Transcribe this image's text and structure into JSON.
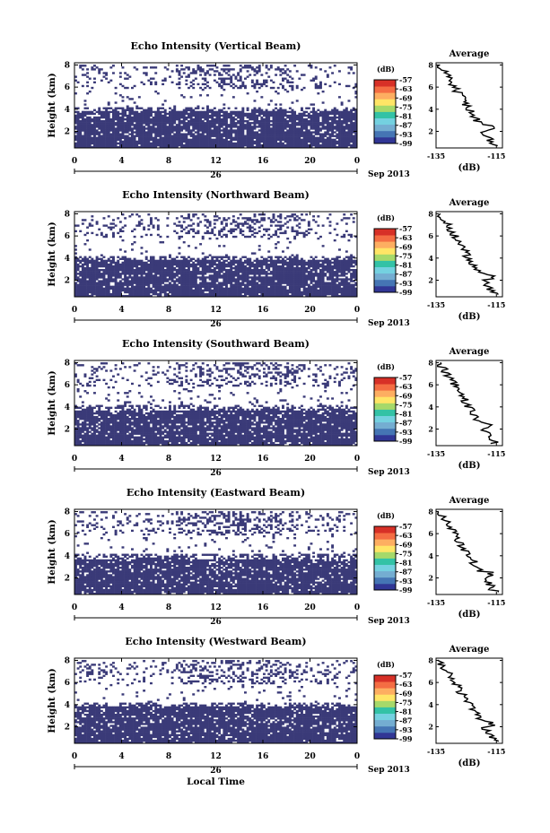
{
  "chart_data": [
    {
      "type": "heatmap",
      "title": "Echo Intensity (Vertical Beam)",
      "ylabel": "Height (km)",
      "x_ticks": [
        "0",
        "4",
        "8",
        "12",
        "16",
        "20",
        "0"
      ],
      "x_range": [
        0,
        24
      ],
      "y_ticks": [
        "2",
        "4",
        "6",
        "8"
      ],
      "y_range": [
        0.5,
        8.2
      ],
      "date_label": "26",
      "month_label": "Sep 2013",
      "colorbar": {
        "unit": "(dB)",
        "ticks": [
          "-57",
          "-63",
          "-69",
          "-75",
          "-81",
          "-87",
          "-93",
          "-99"
        ],
        "range": [
          -99,
          -57
        ]
      },
      "profile": {
        "title": "Average",
        "xlabel": "(dB)",
        "x_ticks": [
          "-135",
          "-115"
        ],
        "y_ticks": [
          "2",
          "4",
          "6",
          "8"
        ],
        "x_range": [
          -135,
          -113
        ],
        "y_range": [
          0.5,
          8.2
        ]
      }
    },
    {
      "type": "heatmap",
      "title": "Echo Intensity (Northward Beam)",
      "ylabel": "Height (km)",
      "x_ticks": [
        "0",
        "4",
        "8",
        "12",
        "16",
        "20",
        "0"
      ],
      "x_range": [
        0,
        24
      ],
      "y_ticks": [
        "2",
        "4",
        "6",
        "8"
      ],
      "y_range": [
        0.5,
        8.2
      ],
      "date_label": "26",
      "month_label": "Sep 2013",
      "colorbar": {
        "unit": "(dB)",
        "ticks": [
          "-57",
          "-63",
          "-69",
          "-75",
          "-81",
          "-87",
          "-93",
          "-99"
        ],
        "range": [
          -99,
          -57
        ]
      },
      "profile": {
        "title": "Average",
        "xlabel": "(dB)",
        "x_ticks": [
          "-135",
          "-115"
        ],
        "y_ticks": [
          "2",
          "4",
          "6",
          "8"
        ],
        "x_range": [
          -135,
          -113
        ],
        "y_range": [
          0.5,
          8.2
        ]
      }
    },
    {
      "type": "heatmap",
      "title": "Echo Intensity (Southward Beam)",
      "ylabel": "Height (km)",
      "x_ticks": [
        "0",
        "4",
        "8",
        "12",
        "16",
        "20",
        "0"
      ],
      "x_range": [
        0,
        24
      ],
      "y_ticks": [
        "2",
        "4",
        "6",
        "8"
      ],
      "y_range": [
        0.5,
        8.2
      ],
      "date_label": "26",
      "month_label": "Sep 2013",
      "colorbar": {
        "unit": "(dB)",
        "ticks": [
          "-57",
          "-63",
          "-69",
          "-75",
          "-81",
          "-87",
          "-93",
          "-99"
        ],
        "range": [
          -99,
          -57
        ]
      },
      "profile": {
        "title": "Average",
        "xlabel": "(dB)",
        "x_ticks": [
          "-135",
          "-115"
        ],
        "y_ticks": [
          "2",
          "4",
          "6",
          "8"
        ],
        "x_range": [
          -135,
          -113
        ],
        "y_range": [
          0.5,
          8.2
        ]
      }
    },
    {
      "type": "heatmap",
      "title": "Echo Intensity (Eastward Beam)",
      "ylabel": "Height (km)",
      "x_ticks": [
        "0",
        "4",
        "8",
        "12",
        "16",
        "20",
        "0"
      ],
      "x_range": [
        0,
        24
      ],
      "y_ticks": [
        "2",
        "4",
        "6",
        "8"
      ],
      "y_range": [
        0.5,
        8.2
      ],
      "date_label": "26",
      "month_label": "Sep 2013",
      "colorbar": {
        "unit": "(dB)",
        "ticks": [
          "-57",
          "-63",
          "-69",
          "-75",
          "-81",
          "-87",
          "-93",
          "-99"
        ],
        "range": [
          -99,
          -57
        ]
      },
      "profile": {
        "title": "Average",
        "xlabel": "(dB)",
        "x_ticks": [
          "-135",
          "-115"
        ],
        "y_ticks": [
          "2",
          "4",
          "6",
          "8"
        ],
        "x_range": [
          -135,
          -113
        ],
        "y_range": [
          0.5,
          8.2
        ]
      }
    },
    {
      "type": "heatmap",
      "title": "Echo Intensity (Westward Beam)",
      "ylabel": "Height (km)",
      "x_ticks": [
        "0",
        "4",
        "8",
        "12",
        "16",
        "20",
        "0"
      ],
      "x_range": [
        0,
        24
      ],
      "y_ticks": [
        "2",
        "4",
        "6",
        "8"
      ],
      "y_range": [
        0.5,
        8.2
      ],
      "date_label": "26",
      "month_label": "Sep 2013",
      "xlabel": "Local Time",
      "colorbar": {
        "unit": "(dB)",
        "ticks": [
          "-57",
          "-63",
          "-69",
          "-75",
          "-81",
          "-87",
          "-93",
          "-99"
        ],
        "range": [
          -99,
          -57
        ]
      },
      "profile": {
        "title": "Average",
        "xlabel": "(dB)",
        "x_ticks": [
          "-135",
          "-115"
        ],
        "y_ticks": [
          "2",
          "4",
          "6",
          "8"
        ],
        "x_range": [
          -135,
          -113
        ],
        "y_range": [
          0.5,
          8.2
        ]
      }
    }
  ],
  "colors": {
    "echo_fill": "#3a3a78",
    "colorbar": [
      "#313695",
      "#4575b4",
      "#74add1",
      "#74d1e0",
      "#33c2a6",
      "#a6d96a",
      "#ffe566",
      "#fdae61",
      "#f46d43",
      "#d73027"
    ]
  }
}
